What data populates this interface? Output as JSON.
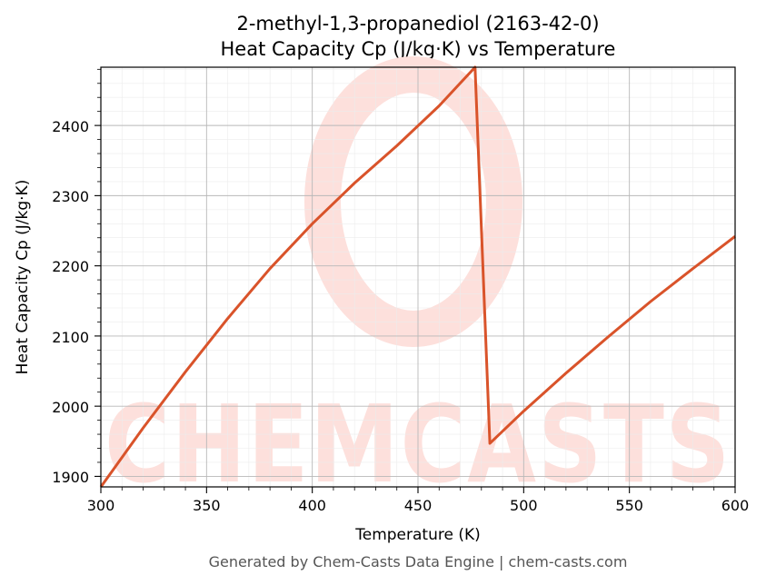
{
  "chart_data": {
    "type": "line",
    "title": "2-methyl-1,3-propanediol (2163-42-0)",
    "subtitle": "Heat Capacity Cp (J/kg·K) vs Temperature",
    "xlabel": "Temperature (K)",
    "ylabel": "Heat Capacity Cp (J/kg·K)",
    "xlim": [
      300,
      600
    ],
    "ylim": [
      1885,
      2483
    ],
    "xticks": [
      300,
      350,
      400,
      450,
      500,
      550,
      600
    ],
    "yticks": [
      1900,
      2000,
      2100,
      2200,
      2300,
      2400
    ],
    "grid": true,
    "legend": "none",
    "series": [
      {
        "color": "#d9532a",
        "x": [
          300,
          320,
          340,
          360,
          380,
          400,
          420,
          440,
          460,
          477,
          484,
          500,
          520,
          540,
          560,
          580,
          600
        ],
        "y": [
          1885,
          1969,
          2049,
          2125,
          2196,
          2260,
          2318,
          2371,
          2428,
          2483,
          1947,
          1993,
          2047,
          2099,
          2149,
          2196,
          2242
        ]
      }
    ]
  },
  "watermark": {
    "text": "CHEMCASTS",
    "color": "#fde0dc"
  },
  "footer": {
    "text": "Generated by Chem-Casts Data Engine | chem-casts.com"
  }
}
